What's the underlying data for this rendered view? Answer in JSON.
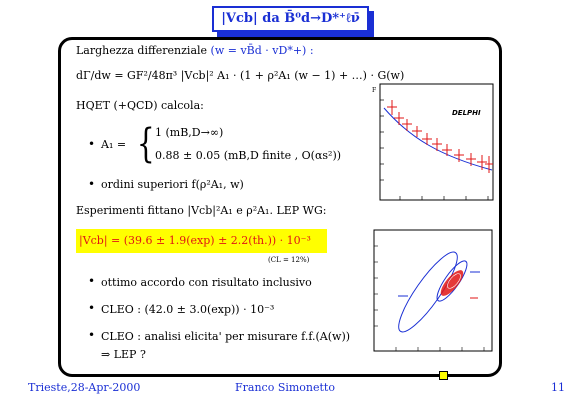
{
  "slide": {
    "title": "|Vcb| da B̄⁰d→D*⁺ℓν̄",
    "lines": {
      "width_label": "Larghezza differenziale",
      "w_def": "(w = vB̄d · vD*+) :",
      "formula": "dΓ/dw = GF²/48π³ |Vcb|² A₁ · (1 + ρ²A₁ (w − 1) + …) · G(w)",
      "hqet": "HQET (+QCD) calcola:",
      "a1_label": "A₁ =",
      "a1_case1": "1  (mB,D→∞)",
      "a1_case2": "0.88 ± 0.05 (mB,D finite , O(αs²))",
      "higher_orders": "ordini superiori f(ρ²A₁, w)",
      "experiments_fit": "Esperimenti fittano |Vcb|²A₁ e ρ²A₁. LEP WG:",
      "result": "|Vcb| = (39.6 ± 1.9(exp) ± 2.2(th.)) · 10⁻³",
      "cl_note": "(CL = 12%)",
      "agreement": "ottimo accordo con risultato inclusivo",
      "cleo_value": "CLEO : (42.0 ± 3.0(exp)) · 10⁻³",
      "cleo_analysis": "CLEO : analisi elicita' per misurare f.f.(A(w))",
      "lep_arrow": "⇒  LEP ?"
    },
    "plot_top": {
      "label": "DELPHI",
      "y_axis_letter": "F"
    },
    "footer": {
      "location_date": "Trieste,28-Apr-2000",
      "author": "Franco Simonetto",
      "page": "11"
    }
  }
}
